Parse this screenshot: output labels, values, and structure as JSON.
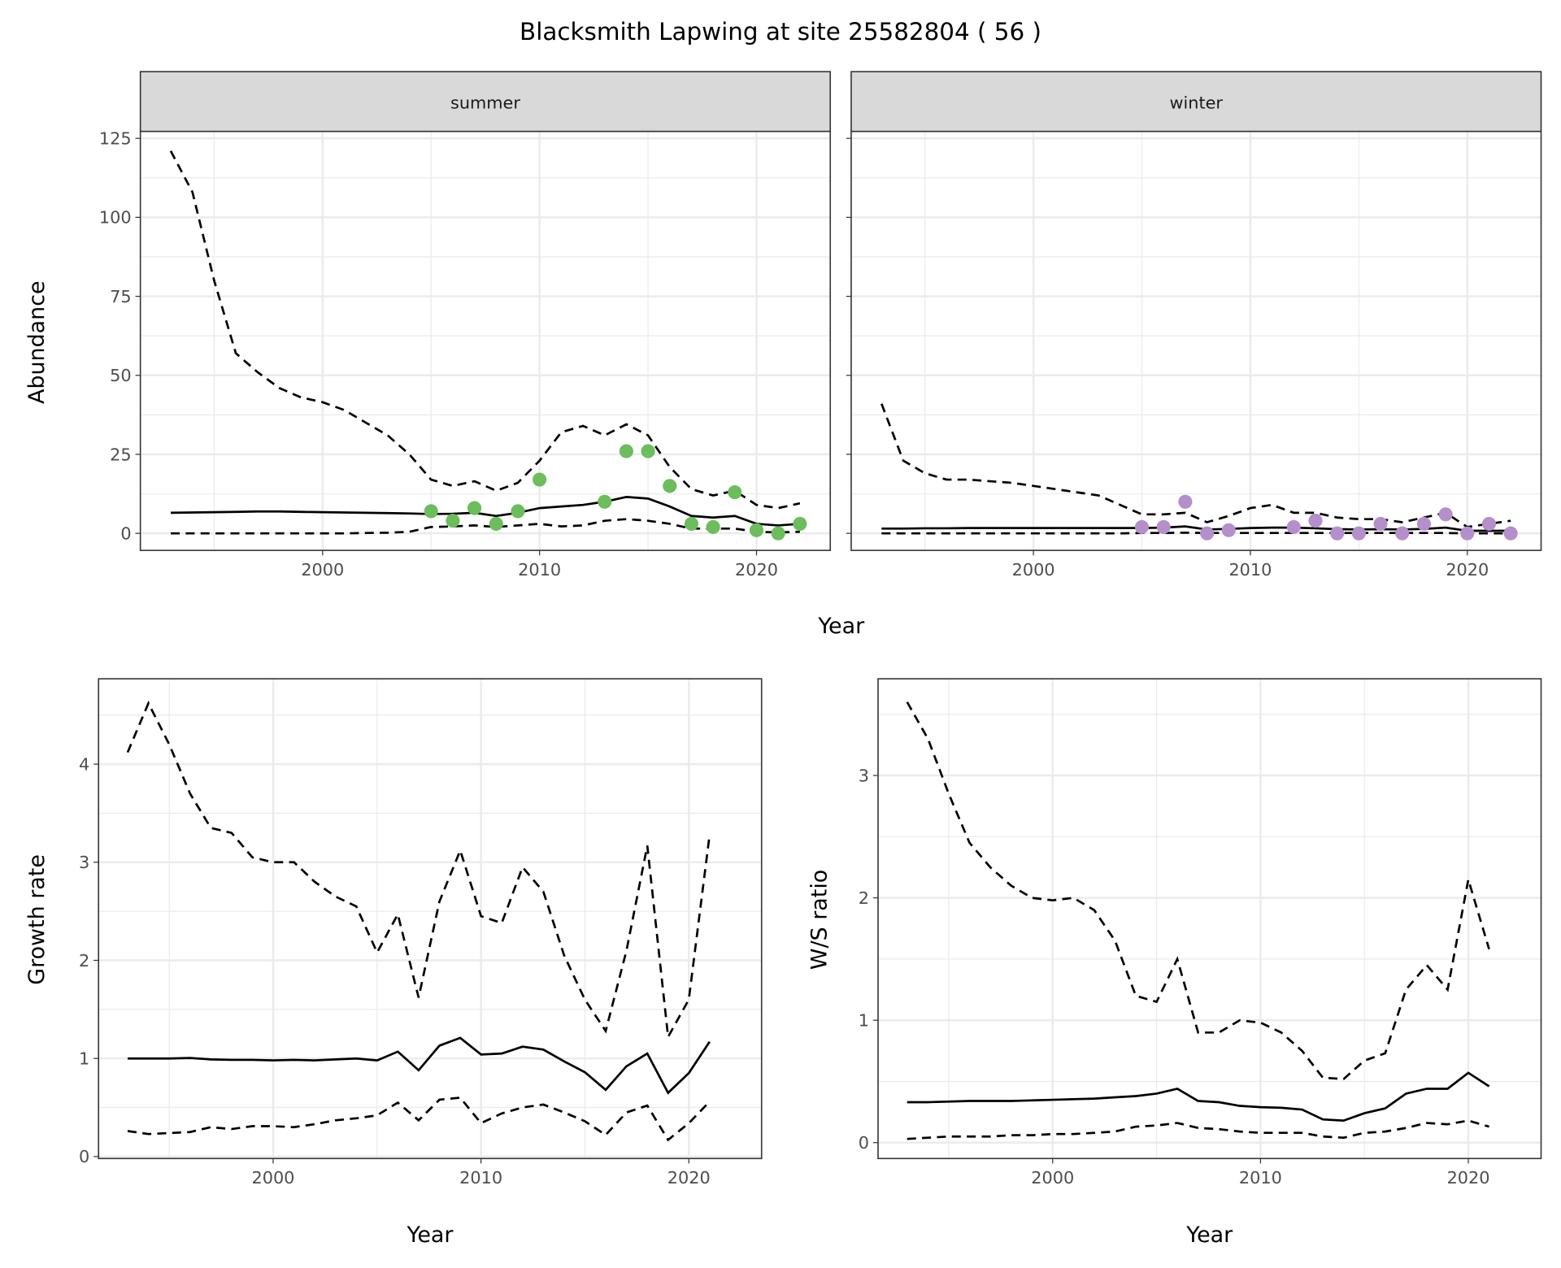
{
  "title": "Blacksmith Lapwing at site 25582804 ( 56 )",
  "colors": {
    "summer": "#6cbd5c",
    "winter": "#b48fcb",
    "grid": "#ebebeb",
    "strip": "#d9d9d9"
  },
  "chart_data": [
    {
      "type": "line",
      "panel": "summer",
      "strip_label": "summer",
      "ylabel": "Abundance",
      "xlabel": "Year",
      "xlim": [
        1991.6,
        2023.4
      ],
      "ylim": [
        -5.4,
        127.2
      ],
      "xticks": [
        2000,
        2010,
        2020
      ],
      "yticks": [
        0,
        25,
        50,
        75,
        100,
        125
      ],
      "grid": true,
      "x": [
        1993,
        1994,
        1995,
        1996,
        1997,
        1998,
        1999,
        2000,
        2001,
        2002,
        2003,
        2004,
        2005,
        2006,
        2007,
        2008,
        2009,
        2010,
        2011,
        2012,
        2013,
        2014,
        2015,
        2016,
        2017,
        2018,
        2019,
        2020,
        2021,
        2022
      ],
      "series": [
        {
          "style": "solid",
          "values": [
            6.5,
            6.6,
            6.7,
            6.8,
            6.9,
            6.9,
            6.8,
            6.7,
            6.6,
            6.5,
            6.4,
            6.3,
            6.1,
            6.2,
            6.5,
            5.5,
            6.5,
            8,
            8.5,
            9,
            10,
            11.5,
            11,
            8.5,
            5.5,
            5,
            5.5,
            3,
            2.5,
            3
          ]
        },
        {
          "style": "dashed",
          "values": [
            121,
            108,
            80,
            57,
            51,
            46,
            43,
            41.5,
            39,
            35,
            31,
            25,
            17,
            15,
            16.5,
            13.5,
            16,
            23,
            32,
            34,
            31,
            34.5,
            31,
            21,
            14,
            12,
            13.5,
            9,
            8,
            9.5
          ]
        },
        {
          "style": "dashed",
          "values": [
            0,
            0,
            0,
            0,
            0,
            0,
            0,
            0,
            0,
            0.1,
            0.2,
            0.5,
            2,
            2.2,
            2.5,
            2,
            2.5,
            3,
            2.2,
            2.5,
            4,
            4.5,
            4,
            3,
            1.5,
            1.5,
            1.5,
            0.5,
            0.3,
            0.5
          ]
        }
      ],
      "points": {
        "x": [
          2005,
          2006,
          2007,
          2008,
          2009,
          2010,
          2013,
          2014,
          2015,
          2016,
          2017,
          2018,
          2019,
          2020,
          2021,
          2022
        ],
        "y": [
          7,
          4,
          8,
          3,
          7,
          17,
          10,
          26,
          26,
          15,
          3,
          2,
          13,
          1,
          0,
          3
        ]
      }
    },
    {
      "type": "line",
      "panel": "winter",
      "strip_label": "winter",
      "xlim": [
        1991.6,
        2023.4
      ],
      "ylim": [
        -5.4,
        127.2
      ],
      "xticks": [
        2000,
        2010,
        2020
      ],
      "grid": true,
      "x": [
        1993,
        1994,
        1995,
        1996,
        1997,
        1998,
        1999,
        2000,
        2001,
        2002,
        2003,
        2004,
        2005,
        2006,
        2007,
        2008,
        2009,
        2010,
        2011,
        2012,
        2013,
        2014,
        2015,
        2016,
        2017,
        2018,
        2019,
        2020,
        2021,
        2022
      ],
      "series": [
        {
          "style": "solid",
          "values": [
            1.5,
            1.5,
            1.6,
            1.6,
            1.7,
            1.7,
            1.7,
            1.7,
            1.7,
            1.7,
            1.7,
            1.7,
            1.7,
            1.8,
            2.2,
            1.2,
            1.4,
            1.7,
            1.8,
            1.8,
            1.6,
            1.3,
            1.2,
            1.3,
            1.2,
            1.4,
            1.8,
            0.8,
            0.8,
            0.8
          ]
        },
        {
          "style": "dashed",
          "values": [
            41,
            23,
            19,
            17,
            17,
            16.5,
            16,
            15,
            14,
            13,
            12,
            9,
            6,
            6,
            6.5,
            3.5,
            5.5,
            8,
            9,
            6.5,
            6.5,
            5,
            4.5,
            4.5,
            3.5,
            5,
            6.5,
            2,
            3,
            4
          ]
        },
        {
          "style": "dashed",
          "values": [
            0,
            0,
            0,
            0,
            0,
            0,
            0,
            0,
            0,
            0,
            0,
            0,
            0.1,
            0.1,
            0.2,
            0.1,
            0.1,
            0.1,
            0.1,
            0.1,
            0.1,
            0.1,
            0.1,
            0.1,
            0.1,
            0.1,
            0.1,
            0,
            0,
            0
          ]
        }
      ],
      "points": {
        "x": [
          2005,
          2006,
          2007,
          2008,
          2009,
          2012,
          2013,
          2014,
          2015,
          2016,
          2017,
          2018,
          2019,
          2020,
          2021,
          2022
        ],
        "y": [
          2,
          2,
          10,
          0,
          1,
          2,
          4,
          0,
          0,
          3,
          0,
          3,
          6,
          0,
          3,
          0
        ]
      }
    },
    {
      "type": "line",
      "panel": "growth",
      "ylabel": "Growth rate",
      "xlabel": "Year",
      "xlim": [
        1991.6,
        2023.5
      ],
      "ylim": [
        -0.02,
        4.87
      ],
      "xticks": [
        2000,
        2010,
        2020
      ],
      "yticks": [
        0,
        1,
        2,
        3,
        4
      ],
      "grid": true,
      "x": [
        1993,
        1994,
        1995,
        1996,
        1997,
        1998,
        1999,
        2000,
        2001,
        2002,
        2003,
        2004,
        2005,
        2006,
        2007,
        2008,
        2009,
        2010,
        2011,
        2012,
        2013,
        2014,
        2015,
        2016,
        2017,
        2018,
        2019,
        2020,
        2021
      ],
      "series": [
        {
          "style": "solid",
          "values": [
            1.0,
            1.0,
            1.0,
            1.005,
            0.99,
            0.985,
            0.985,
            0.98,
            0.985,
            0.98,
            0.99,
            1.0,
            0.98,
            1.07,
            0.88,
            1.13,
            1.21,
            1.04,
            1.05,
            1.12,
            1.09,
            0.97,
            0.86,
            0.68,
            0.92,
            1.05,
            0.65,
            0.85,
            1.17
          ]
        },
        {
          "style": "dashed",
          "values": [
            4.12,
            4.62,
            4.2,
            3.7,
            3.35,
            3.3,
            3.05,
            3.0,
            3.0,
            2.8,
            2.65,
            2.55,
            2.08,
            2.47,
            1.62,
            2.6,
            3.12,
            2.45,
            2.38,
            2.95,
            2.7,
            2.05,
            1.6,
            1.28,
            2.1,
            3.17,
            1.22,
            1.6,
            3.28
          ]
        },
        {
          "style": "dashed",
          "values": [
            0.26,
            0.23,
            0.24,
            0.25,
            0.3,
            0.28,
            0.31,
            0.31,
            0.3,
            0.33,
            0.37,
            0.39,
            0.42,
            0.55,
            0.37,
            0.58,
            0.6,
            0.34,
            0.44,
            0.5,
            0.53,
            0.45,
            0.36,
            0.22,
            0.45,
            0.52,
            0.17,
            0.34,
            0.56
          ]
        }
      ]
    },
    {
      "type": "line",
      "panel": "ratio",
      "ylabel": "W/S ratio",
      "xlabel": "Year",
      "xlim": [
        1991.6,
        2023.5
      ],
      "ylim": [
        -0.13,
        3.79
      ],
      "xticks": [
        2000,
        2010,
        2020
      ],
      "yticks": [
        0,
        1,
        2,
        3
      ],
      "grid": true,
      "x": [
        1993,
        1994,
        1995,
        1996,
        1997,
        1998,
        1999,
        2000,
        2001,
        2002,
        2003,
        2004,
        2005,
        2006,
        2007,
        2008,
        2009,
        2010,
        2011,
        2012,
        2013,
        2014,
        2015,
        2016,
        2017,
        2018,
        2019,
        2020,
        2021
      ],
      "series": [
        {
          "style": "solid",
          "values": [
            0.33,
            0.33,
            0.335,
            0.34,
            0.34,
            0.34,
            0.345,
            0.35,
            0.355,
            0.36,
            0.37,
            0.38,
            0.4,
            0.44,
            0.34,
            0.33,
            0.3,
            0.29,
            0.285,
            0.27,
            0.19,
            0.18,
            0.24,
            0.28,
            0.4,
            0.44,
            0.44,
            0.57,
            0.46
          ]
        },
        {
          "style": "dashed",
          "values": [
            3.6,
            3.3,
            2.85,
            2.45,
            2.25,
            2.1,
            2.0,
            1.98,
            2.0,
            1.9,
            1.65,
            1.2,
            1.15,
            1.5,
            0.9,
            0.9,
            1.0,
            0.98,
            0.9,
            0.75,
            0.53,
            0.52,
            0.67,
            0.73,
            1.25,
            1.45,
            1.25,
            2.15,
            1.58
          ]
        },
        {
          "style": "dashed",
          "values": [
            0.03,
            0.04,
            0.05,
            0.05,
            0.05,
            0.06,
            0.06,
            0.07,
            0.07,
            0.08,
            0.09,
            0.13,
            0.14,
            0.16,
            0.12,
            0.11,
            0.09,
            0.08,
            0.08,
            0.08,
            0.05,
            0.04,
            0.08,
            0.09,
            0.12,
            0.16,
            0.15,
            0.18,
            0.13
          ]
        }
      ]
    }
  ]
}
